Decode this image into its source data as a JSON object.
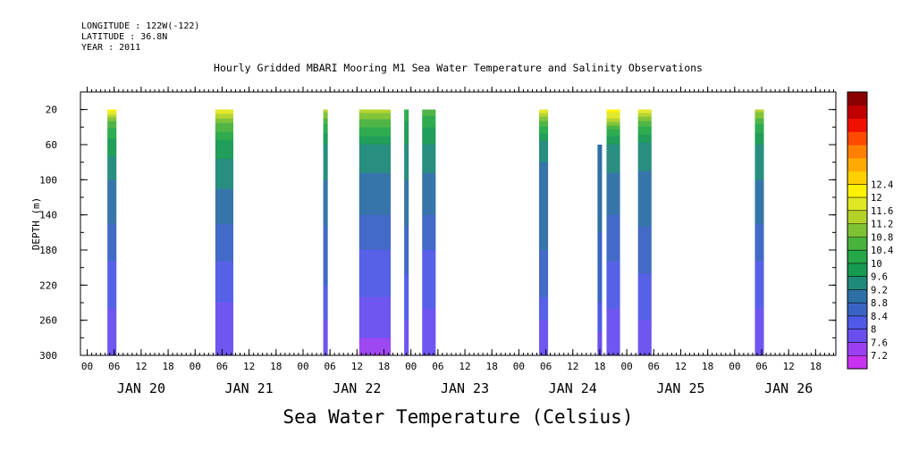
{
  "header": {
    "longitude": "LONGITUDE : 122W(-122)",
    "latitude": "LATITUDE : 36.8N",
    "year": "YEAR : 2011"
  },
  "chart_data": {
    "type": "heatmap",
    "title": "Hourly Gridded MBARI Mooring M1 Sea Water Temperature and Salinity Observations",
    "xlabel": "Sea Water Temperature (Celsius)",
    "ylabel": "DEPTH (m)",
    "y_inverted": true,
    "ylim": [
      300,
      0
    ],
    "y_ticks": [
      20,
      60,
      100,
      140,
      180,
      220,
      260,
      300
    ],
    "x_hour_labels": [
      "00",
      "06",
      "12",
      "18"
    ],
    "x_day_labels": [
      "JAN 20",
      "JAN 21",
      "JAN 22",
      "JAN 23",
      "JAN 24",
      "JAN 25",
      "JAN 26"
    ],
    "x_range_hours_from_jan20_00": [
      -1.5,
      166.5
    ],
    "colorbar": {
      "levels": [
        7.2,
        7.6,
        8,
        8.4,
        8.8,
        9.2,
        9.6,
        10,
        10.4,
        10.8,
        11.2,
        11.6,
        12,
        12.4
      ],
      "colors": [
        "#c832f0",
        "#9a40f0",
        "#6a4ef0",
        "#4f5ae6",
        "#3a64c4",
        "#2e6fa6",
        "#1f8a7a",
        "#179a52",
        "#26a848",
        "#48b23e",
        "#7cc232",
        "#b2d22a",
        "#e0e824",
        "#fff200",
        "#ffd000",
        "#ffaa00",
        "#ff8000",
        "#ff4a00",
        "#f01000",
        "#c00000",
        "#8a0000"
      ]
    },
    "columns": [
      {
        "start": 4.5,
        "end": 6.5,
        "top": 20,
        "temps": [
          [
            20,
            12.2
          ],
          [
            35,
            10.6
          ],
          [
            60,
            9.8
          ],
          [
            100,
            9.2
          ],
          [
            140,
            8.9
          ],
          [
            180,
            8.5
          ],
          [
            220,
            8.2
          ],
          [
            260,
            7.9
          ],
          [
            300,
            7.7
          ]
        ]
      },
      {
        "start": 28.5,
        "end": 32.5,
        "top": 20,
        "temps": [
          [
            20,
            12.0
          ],
          [
            35,
            10.8
          ],
          [
            60,
            9.8
          ],
          [
            100,
            9.3
          ],
          [
            140,
            8.9
          ],
          [
            180,
            8.5
          ],
          [
            220,
            8.2
          ],
          [
            260,
            7.8
          ],
          [
            300,
            7.6
          ]
        ]
      },
      {
        "start": 52.5,
        "end": 53.5,
        "top": 20,
        "temps": [
          [
            20,
            11.4
          ],
          [
            40,
            10.2
          ],
          [
            60,
            9.6
          ],
          [
            100,
            9.2
          ],
          [
            140,
            8.9
          ],
          [
            180,
            8.6
          ],
          [
            220,
            8.4
          ],
          [
            260,
            8.0
          ],
          [
            300,
            7.8
          ]
        ]
      },
      {
        "start": 60.5,
        "end": 67.5,
        "top": 20,
        "temps": [
          [
            20,
            11.4
          ],
          [
            35,
            10.6
          ],
          [
            60,
            9.6
          ],
          [
            100,
            9.1
          ],
          [
            140,
            8.8
          ],
          [
            180,
            8.4
          ],
          [
            220,
            8.1
          ],
          [
            260,
            7.8
          ],
          [
            300,
            7.4
          ]
        ]
      },
      {
        "start": 70.5,
        "end": 71.5,
        "top": 20,
        "temps": [
          [
            20,
            10.2
          ],
          [
            60,
            9.6
          ],
          [
            100,
            9.2
          ],
          [
            140,
            8.9
          ],
          [
            180,
            8.6
          ],
          [
            220,
            8.3
          ],
          [
            260,
            8.0
          ],
          [
            300,
            7.8
          ]
        ]
      },
      {
        "start": 74.5,
        "end": 77.5,
        "top": 20,
        "temps": [
          [
            20,
            10.6
          ],
          [
            40,
            10.0
          ],
          [
            60,
            9.6
          ],
          [
            100,
            9.1
          ],
          [
            140,
            8.8
          ],
          [
            180,
            8.4
          ],
          [
            220,
            8.2
          ],
          [
            260,
            7.9
          ],
          [
            300,
            7.8
          ]
        ]
      },
      {
        "start": 100.5,
        "end": 102.5,
        "top": 20,
        "temps": [
          [
            20,
            12.0
          ],
          [
            35,
            10.6
          ],
          [
            60,
            9.4
          ],
          [
            100,
            9.0
          ],
          [
            140,
            8.9
          ],
          [
            180,
            8.8
          ],
          [
            220,
            8.6
          ],
          [
            260,
            8.0
          ],
          [
            300,
            7.8
          ]
        ]
      },
      {
        "start": 113.5,
        "end": 114.5,
        "top": 60,
        "temps": [
          [
            60,
            9.2
          ],
          [
            100,
            9.1
          ],
          [
            140,
            8.9
          ],
          [
            180,
            8.7
          ],
          [
            220,
            8.6
          ],
          [
            260,
            8.2
          ],
          [
            300,
            7.6
          ]
        ]
      },
      {
        "start": 115.5,
        "end": 118.5,
        "top": 20,
        "temps": [
          [
            20,
            12.2
          ],
          [
            30,
            11.6
          ],
          [
            45,
            10.2
          ],
          [
            60,
            9.6
          ],
          [
            100,
            9.1
          ],
          [
            140,
            8.8
          ],
          [
            180,
            8.5
          ],
          [
            220,
            8.2
          ],
          [
            260,
            7.9
          ],
          [
            300,
            7.7
          ]
        ]
      },
      {
        "start": 122.5,
        "end": 125.5,
        "top": 20,
        "temps": [
          [
            20,
            12.0
          ],
          [
            35,
            10.6
          ],
          [
            60,
            9.5
          ],
          [
            100,
            9.1
          ],
          [
            140,
            8.9
          ],
          [
            180,
            8.6
          ],
          [
            220,
            8.3
          ],
          [
            260,
            8.0
          ],
          [
            300,
            7.8
          ]
        ]
      },
      {
        "start": 148.5,
        "end": 150.5,
        "top": 20,
        "temps": [
          [
            20,
            11.4
          ],
          [
            40,
            10.2
          ],
          [
            60,
            9.6
          ],
          [
            100,
            9.2
          ],
          [
            140,
            8.9
          ],
          [
            180,
            8.5
          ],
          [
            220,
            8.2
          ],
          [
            260,
            7.9
          ],
          [
            300,
            7.8
          ]
        ]
      }
    ]
  }
}
